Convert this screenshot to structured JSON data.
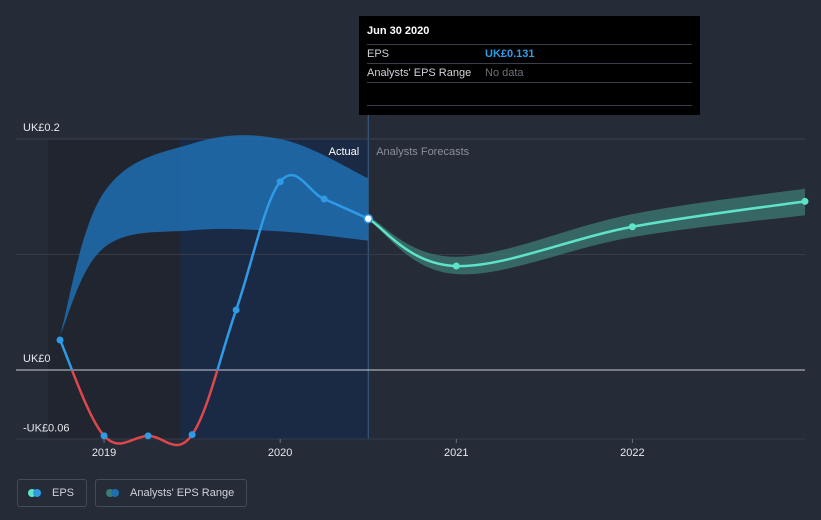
{
  "tooltip": {
    "date": "Jun 30 2020",
    "eps_label": "EPS",
    "eps_value": "UK£0.131",
    "range_label": "Analysts' EPS Range",
    "range_value": "No data"
  },
  "regions": {
    "actual_label": "Actual",
    "forecast_label": "Analysts Forecasts"
  },
  "legend": {
    "eps_label": "EPS",
    "range_label": "Analysts' EPS Range"
  },
  "colors": {
    "background": "#252b37",
    "eps_actual": "#2f9be6",
    "eps_negative": "#e0474c",
    "eps_forecast": "#5fe3c8",
    "range_band": "#1f6fb0",
    "forecast_band": "#3d7c76",
    "actual_region": "#1a2a45"
  },
  "chart_data": {
    "type": "line",
    "y_tick_labels": [
      "UK£0.2",
      "UK£0",
      "-UK£0.06"
    ],
    "x_tick_labels": [
      "2019",
      "2020",
      "2021",
      "2022"
    ],
    "ylim": [
      -0.06,
      0.2
    ],
    "xlim": [
      2018.5,
      2022.98
    ],
    "divider_x": 2020.5,
    "series": [
      {
        "name": "EPS",
        "kind": "actual",
        "x": [
          2018.75,
          2019.0,
          2019.25,
          2019.5,
          2019.75,
          2020.0,
          2020.25,
          2020.5
        ],
        "y": [
          0.026,
          -0.057,
          -0.057,
          -0.056,
          0.052,
          0.163,
          0.148,
          0.131
        ]
      },
      {
        "name": "EPS",
        "kind": "forecast",
        "x": [
          2020.5,
          2021.0,
          2022.0,
          2022.98
        ],
        "y": [
          0.131,
          0.09,
          0.124,
          0.146
        ]
      }
    ],
    "range_band_actual": {
      "x": [
        2018.75,
        2019.0,
        2019.5,
        2020.0,
        2020.5
      ],
      "low": [
        0.03,
        0.106,
        0.121,
        0.12,
        0.112
      ],
      "high": [
        0.03,
        0.154,
        0.196,
        0.2,
        0.166
      ]
    },
    "range_band_forecast": {
      "x": [
        2020.5,
        2021.0,
        2022.0,
        2022.98
      ],
      "low": [
        0.13,
        0.083,
        0.115,
        0.134
      ],
      "high": [
        0.133,
        0.098,
        0.135,
        0.157
      ]
    }
  }
}
